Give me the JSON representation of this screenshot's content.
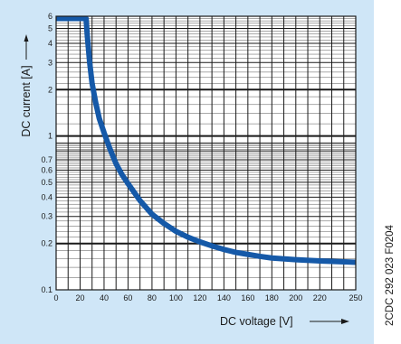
{
  "colors": {
    "background": "#cfe6f7",
    "plot_area": "#ffffff",
    "grid": "#1a1a1a",
    "curve": "#1559a8"
  },
  "document_code": "2CDC 292 023 F0204",
  "chart_data": {
    "type": "line",
    "title": "",
    "xlabel": "DC voltage [V]",
    "ylabel": "DC current [A]",
    "xlim": [
      0,
      250
    ],
    "ylim": [
      0.1,
      6
    ],
    "y_scale": "log",
    "grid": true,
    "x_ticks": [
      0,
      20,
      40,
      60,
      80,
      100,
      120,
      140,
      160,
      180,
      200,
      220,
      250
    ],
    "x_tick_labels": [
      "0",
      "20",
      "40",
      "60",
      "80",
      "100",
      "120",
      "140",
      "160",
      "180",
      "200",
      "220",
      "250"
    ],
    "y_ticks": [
      0.1,
      0.2,
      0.3,
      0.4,
      0.5,
      0.6,
      0.7,
      1,
      2,
      3,
      4,
      5,
      6
    ],
    "y_tick_labels": [
      "0.1",
      "0.2",
      "0.3",
      "0.4",
      "0.5",
      "0.6",
      "0.7",
      "1",
      "2",
      "3",
      "4",
      "5",
      "6"
    ],
    "series": [
      {
        "x": [
          0,
          10,
          20,
          25,
          26,
          28,
          30,
          33,
          36,
          40,
          45,
          50,
          55,
          60,
          70,
          80,
          90,
          100,
          110,
          120,
          130,
          140,
          150,
          160,
          170,
          180,
          200,
          220,
          240,
          250
        ],
        "y": [
          5.8,
          5.8,
          5.8,
          5.8,
          4.5,
          3.0,
          2.2,
          1.65,
          1.3,
          1.05,
          0.82,
          0.66,
          0.56,
          0.49,
          0.38,
          0.31,
          0.27,
          0.24,
          0.22,
          0.205,
          0.193,
          0.183,
          0.175,
          0.17,
          0.165,
          0.161,
          0.157,
          0.154,
          0.152,
          0.151
        ]
      }
    ]
  }
}
